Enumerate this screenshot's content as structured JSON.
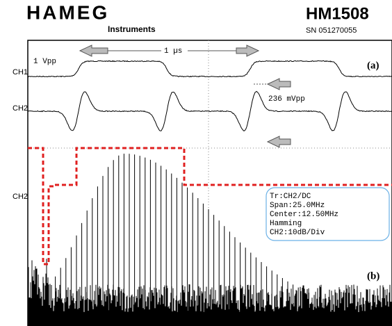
{
  "header": {
    "brand": "HAMEG",
    "brand_sub": "Instruments",
    "model": "HM1508",
    "serial": "SN 051270055"
  },
  "screen": {
    "ch1_amplitude": "1 Vpp",
    "time_span": "1 µs",
    "panel_a": "(a)",
    "ch1_label": "CH1",
    "ch2_label": "CH2",
    "ch2_amplitude": "236 mVpp",
    "fft_channel_label": "CH2",
    "panel_b": "(b)",
    "fft_info": [
      "Tr:CH2/DC",
      "Span:25.0MHz",
      "Center:12.50MHz",
      "Hamming",
      "CH2:10dB/Div"
    ]
  }
}
